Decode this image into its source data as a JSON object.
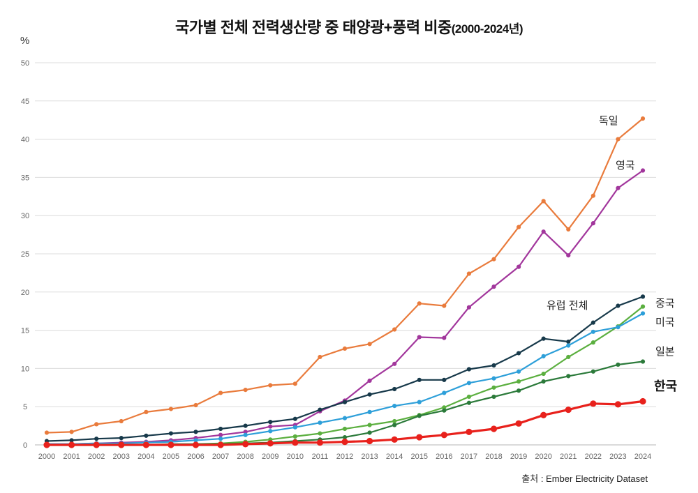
{
  "source": "출처 : Ember Electricity Dataset",
  "chart_data": {
    "type": "line",
    "title": "국가별 전체 전력생산량 중 태양광+풍력 비중",
    "title_period": "(2000-2024년)",
    "xlabel": "",
    "ylabel": "%",
    "ylim": [
      0,
      50
    ],
    "yticks": [
      0,
      5,
      10,
      15,
      20,
      25,
      30,
      35,
      40,
      45,
      50
    ],
    "grid": "horizontal",
    "legend": "inline labels at line ends",
    "x": [
      "2000",
      "2001",
      "2002",
      "2003",
      "2004",
      "2005",
      "2006",
      "2007",
      "2008",
      "2009",
      "2010",
      "2011",
      "2012",
      "2013",
      "2014",
      "2015",
      "2016",
      "2017",
      "2018",
      "2019",
      "2020",
      "2021",
      "2022",
      "2023",
      "2024"
    ],
    "series": [
      {
        "name": "독일",
        "color": "#E97B3C",
        "values": [
          1.6,
          1.7,
          2.7,
          3.1,
          4.3,
          4.7,
          5.2,
          6.8,
          7.2,
          7.8,
          8.0,
          11.5,
          12.6,
          13.2,
          15.1,
          18.5,
          18.2,
          22.4,
          24.3,
          28.5,
          31.9,
          28.2,
          32.6,
          40.0,
          42.7
        ]
      },
      {
        "name": "영국",
        "color": "#A2369C",
        "values": [
          0.1,
          0.1,
          0.2,
          0.3,
          0.4,
          0.6,
          0.9,
          1.3,
          1.7,
          2.4,
          2.6,
          4.4,
          5.8,
          8.4,
          10.6,
          14.1,
          14.0,
          18.0,
          20.7,
          23.3,
          27.9,
          24.8,
          29.0,
          33.6,
          35.9
        ]
      },
      {
        "name": "유럽 전체",
        "color": "#17394A",
        "values": [
          0.5,
          0.6,
          0.8,
          0.9,
          1.2,
          1.5,
          1.7,
          2.1,
          2.5,
          3.0,
          3.4,
          4.6,
          5.6,
          6.6,
          7.3,
          8.5,
          8.5,
          9.9,
          10.4,
          12.0,
          13.9,
          13.5,
          16.0,
          18.2,
          19.4
        ]
      },
      {
        "name": "중국",
        "color": "#5BAF3F",
        "values": [
          0.0,
          0.0,
          0.0,
          0.0,
          0.0,
          0.0,
          0.1,
          0.2,
          0.4,
          0.7,
          1.1,
          1.5,
          2.1,
          2.6,
          3.1,
          3.9,
          4.9,
          6.3,
          7.5,
          8.3,
          9.3,
          11.5,
          13.4,
          15.5,
          18.1
        ]
      },
      {
        "name": "미국",
        "color": "#2D9FD9",
        "values": [
          0.1,
          0.1,
          0.2,
          0.2,
          0.3,
          0.4,
          0.6,
          0.8,
          1.3,
          1.8,
          2.3,
          2.9,
          3.5,
          4.3,
          5.1,
          5.6,
          6.8,
          8.1,
          8.7,
          9.6,
          11.6,
          13.0,
          14.8,
          15.4,
          17.2
        ]
      },
      {
        "name": "일본",
        "color": "#2B7A3A",
        "values": [
          0.0,
          0.0,
          0.0,
          0.0,
          0.0,
          0.1,
          0.1,
          0.1,
          0.2,
          0.3,
          0.5,
          0.7,
          1.0,
          1.6,
          2.6,
          3.8,
          4.5,
          5.5,
          6.3,
          7.1,
          8.3,
          9.0,
          9.6,
          10.5,
          10.9
        ]
      },
      {
        "name": "한국",
        "color": "#E8211C",
        "emphasis": true,
        "values": [
          0.0,
          0.0,
          0.0,
          0.0,
          0.0,
          0.0,
          0.0,
          0.0,
          0.1,
          0.2,
          0.3,
          0.3,
          0.4,
          0.5,
          0.7,
          1.0,
          1.3,
          1.7,
          2.1,
          2.8,
          3.9,
          4.6,
          5.4,
          5.3,
          5.7
        ]
      }
    ]
  }
}
